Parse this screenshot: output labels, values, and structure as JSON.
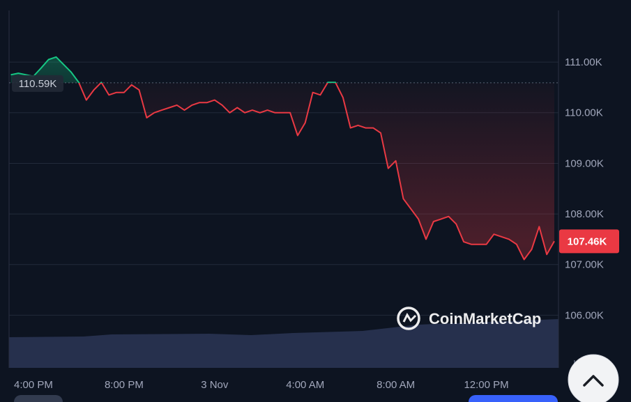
{
  "chart_data": {
    "type": "line",
    "categories": [
      null,
      null,
      null,
      "4:00 PM",
      null,
      null,
      null,
      null,
      null,
      null,
      null,
      null,
      null,
      null,
      null,
      "8:00 PM",
      null,
      null,
      null,
      null,
      null,
      null,
      null,
      null,
      null,
      null,
      null,
      "3 Nov",
      null,
      null,
      null,
      null,
      null,
      null,
      null,
      null,
      null,
      null,
      null,
      "4:00 AM",
      null,
      null,
      null,
      null,
      null,
      null,
      null,
      null,
      null,
      null,
      null,
      "8:00 AM",
      null,
      null,
      null,
      null,
      null,
      null,
      null,
      null,
      null,
      null,
      null,
      "12:00 PM",
      null,
      null,
      null,
      null,
      null,
      null,
      null,
      null,
      null
    ],
    "values": [
      110.75,
      110.78,
      110.75,
      110.72,
      110.88,
      111.05,
      111.1,
      110.95,
      110.8,
      110.6,
      110.25,
      110.45,
      110.6,
      110.35,
      110.4,
      110.4,
      110.55,
      110.45,
      109.9,
      110.0,
      110.05,
      110.1,
      110.15,
      110.05,
      110.15,
      110.2,
      110.2,
      110.25,
      110.15,
      110.0,
      110.1,
      110.0,
      110.05,
      110.0,
      110.05,
      110.0,
      110.0,
      110.0,
      109.55,
      109.8,
      110.4,
      110.35,
      110.6,
      110.6,
      110.3,
      109.7,
      109.75,
      109.7,
      109.7,
      109.6,
      108.9,
      109.05,
      108.3,
      108.1,
      107.9,
      107.5,
      107.85,
      107.9,
      107.95,
      107.8,
      107.45,
      107.4,
      107.4,
      107.4,
      107.6,
      107.55,
      107.5,
      107.4,
      107.1,
      107.3,
      107.75,
      107.2,
      107.46
    ],
    "last_label": "107.46K",
    "baseline": {
      "value": 110.59,
      "label": "110.59K"
    },
    "up_color": "#16c784",
    "down_color": "#ea3943",
    "ylim": [
      104.96,
      112.02
    ],
    "yticks": [
      {
        "value": 106,
        "label": "106.00K"
      },
      {
        "value": 107,
        "label": "107.00K"
      },
      {
        "value": 108,
        "label": "108.00K"
      },
      {
        "value": 109,
        "label": "109.00K"
      },
      {
        "value": 110,
        "label": "110.00K"
      },
      {
        "value": 111,
        "label": "111.00K"
      }
    ],
    "grid": true,
    "currency": "USD",
    "watermark": "CoinMarketCap"
  }
}
